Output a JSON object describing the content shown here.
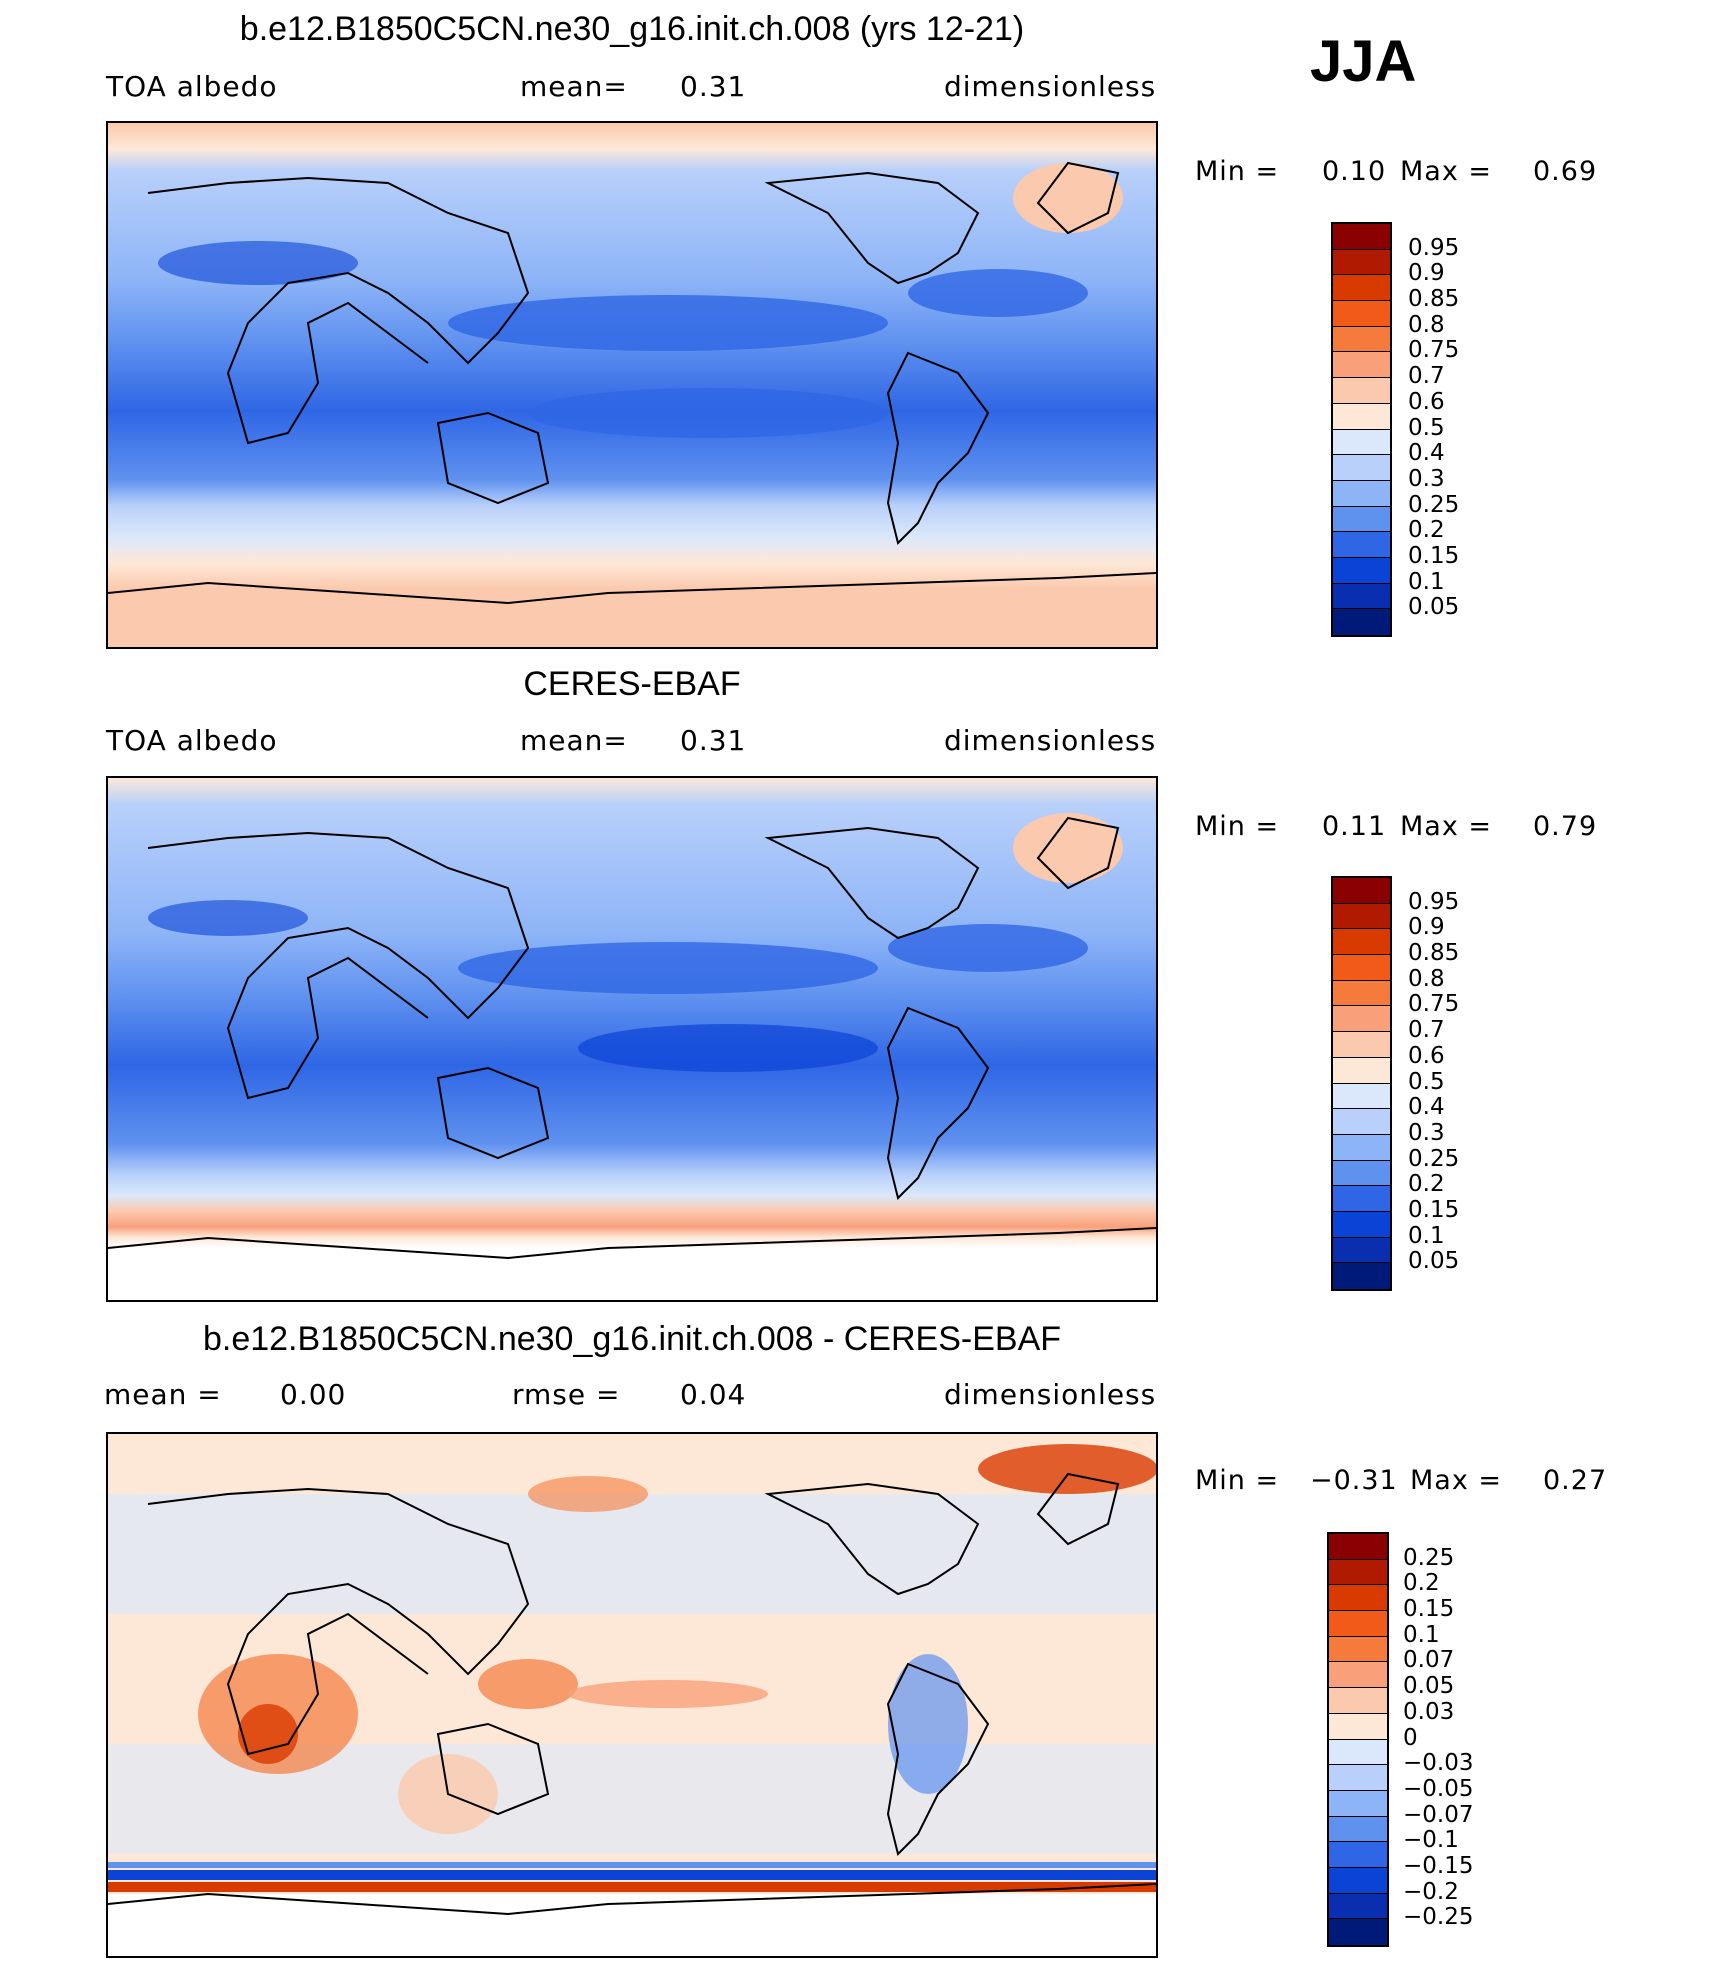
{
  "season": "JJA",
  "panels": [
    {
      "id": "model",
      "title": "b.e12.B1850C5CN.ne30_g16.init.ch.008 (yrs 12-21)",
      "left_label": "TOA albedo",
      "center_label": "mean=",
      "center_value": "0.31",
      "right_label": "dimensionless",
      "min_label": "Min =",
      "min_value": "0.10",
      "max_label": "Max =",
      "max_value": "0.69",
      "colorbar_labels": [
        "0.95",
        "0.9",
        "0.85",
        "0.8",
        "0.75",
        "0.7",
        "0.6",
        "0.5",
        "0.4",
        "0.3",
        "0.25",
        "0.2",
        "0.15",
        "0.1",
        "0.05"
      ]
    },
    {
      "id": "obs",
      "title": "CERES-EBAF",
      "left_label": "TOA albedo",
      "center_label": "mean=",
      "center_value": "0.31",
      "right_label": "dimensionless",
      "min_label": "Min =",
      "min_value": "0.11",
      "max_label": "Max =",
      "max_value": "0.79",
      "colorbar_labels": [
        "0.95",
        "0.9",
        "0.85",
        "0.8",
        "0.75",
        "0.7",
        "0.6",
        "0.5",
        "0.4",
        "0.3",
        "0.25",
        "0.2",
        "0.15",
        "0.1",
        "0.05"
      ]
    },
    {
      "id": "diff",
      "title": "b.e12.B1850C5CN.ne30_g16.init.ch.008 - CERES-EBAF",
      "left_label": "mean =",
      "left_value": "0.00",
      "center_label": "rmse =",
      "center_value": "0.04",
      "right_label": "dimensionless",
      "min_label": "Min =",
      "min_value": "−0.31",
      "max_label": "Max =",
      "max_value": "0.27",
      "colorbar_labels": [
        "0.25",
        "0.2",
        "0.15",
        "0.1",
        "0.07",
        "0.05",
        "0.03",
        "0",
        "−0.03",
        "−0.05",
        "−0.07",
        "−0.1",
        "−0.15",
        "−0.2",
        "−0.25"
      ]
    }
  ],
  "colorbar_colors": [
    "#8b0000",
    "#b01a00",
    "#d93a00",
    "#f25a1a",
    "#f57b3c",
    "#f9a07a",
    "#fbc9ad",
    "#fde8d8",
    "#dbe8fb",
    "#b8d0fa",
    "#8db4f7",
    "#5f91ef",
    "#2f66e5",
    "#0b43d6",
    "#0a2eb0",
    "#001a7a"
  ]
}
